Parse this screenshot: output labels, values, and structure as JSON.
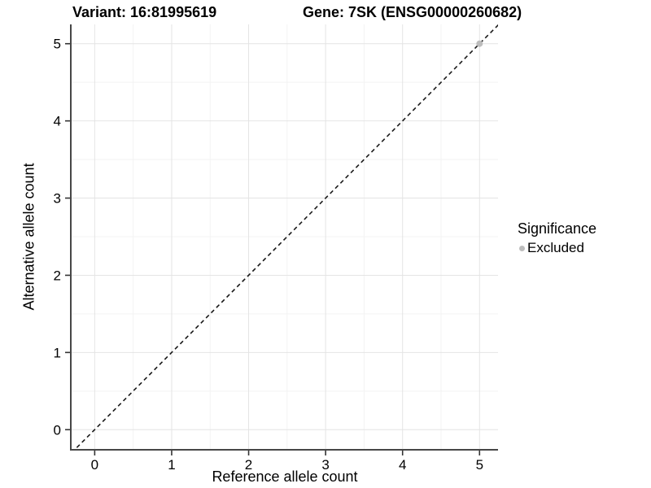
{
  "chart_data": {
    "type": "scatter",
    "title_left": "Variant: 16:81995619",
    "title_right": "Gene: 7SK (ENSG00000260682)",
    "xlabel": "Reference allele count",
    "ylabel": "Alternative allele count",
    "xlim": [
      -0.3,
      5.24
    ],
    "ylim": [
      -0.25,
      5.25
    ],
    "x_ticks": [
      0,
      1,
      2,
      3,
      4,
      5
    ],
    "y_ticks": [
      0,
      1,
      2,
      3,
      4,
      5
    ],
    "x_minor": [
      0.5,
      1.5,
      2.5,
      3.5,
      4.5
    ],
    "y_minor": [
      0.5,
      1.5,
      2.5,
      3.5,
      4.5
    ],
    "grid": "on",
    "points": [
      {
        "x": 5,
        "y": 5,
        "series": "Excluded"
      }
    ],
    "reference_line": {
      "type": "identity",
      "slope": 1,
      "intercept": 0,
      "style": "dashed"
    },
    "legend": {
      "position": "right",
      "title": "Significance",
      "items": [
        {
          "label": "Excluded",
          "color": "#bdbdbd"
        }
      ]
    },
    "colors": {
      "point_excluded": "#bdbdbd",
      "major_grid": "#e4e4e4",
      "minor_grid": "#f3f3f3",
      "axis_line": "#474747",
      "tick_mark": "#333333",
      "text": "#000000",
      "ref_line": "#1a1a1a",
      "background": "#ffffff"
    }
  }
}
